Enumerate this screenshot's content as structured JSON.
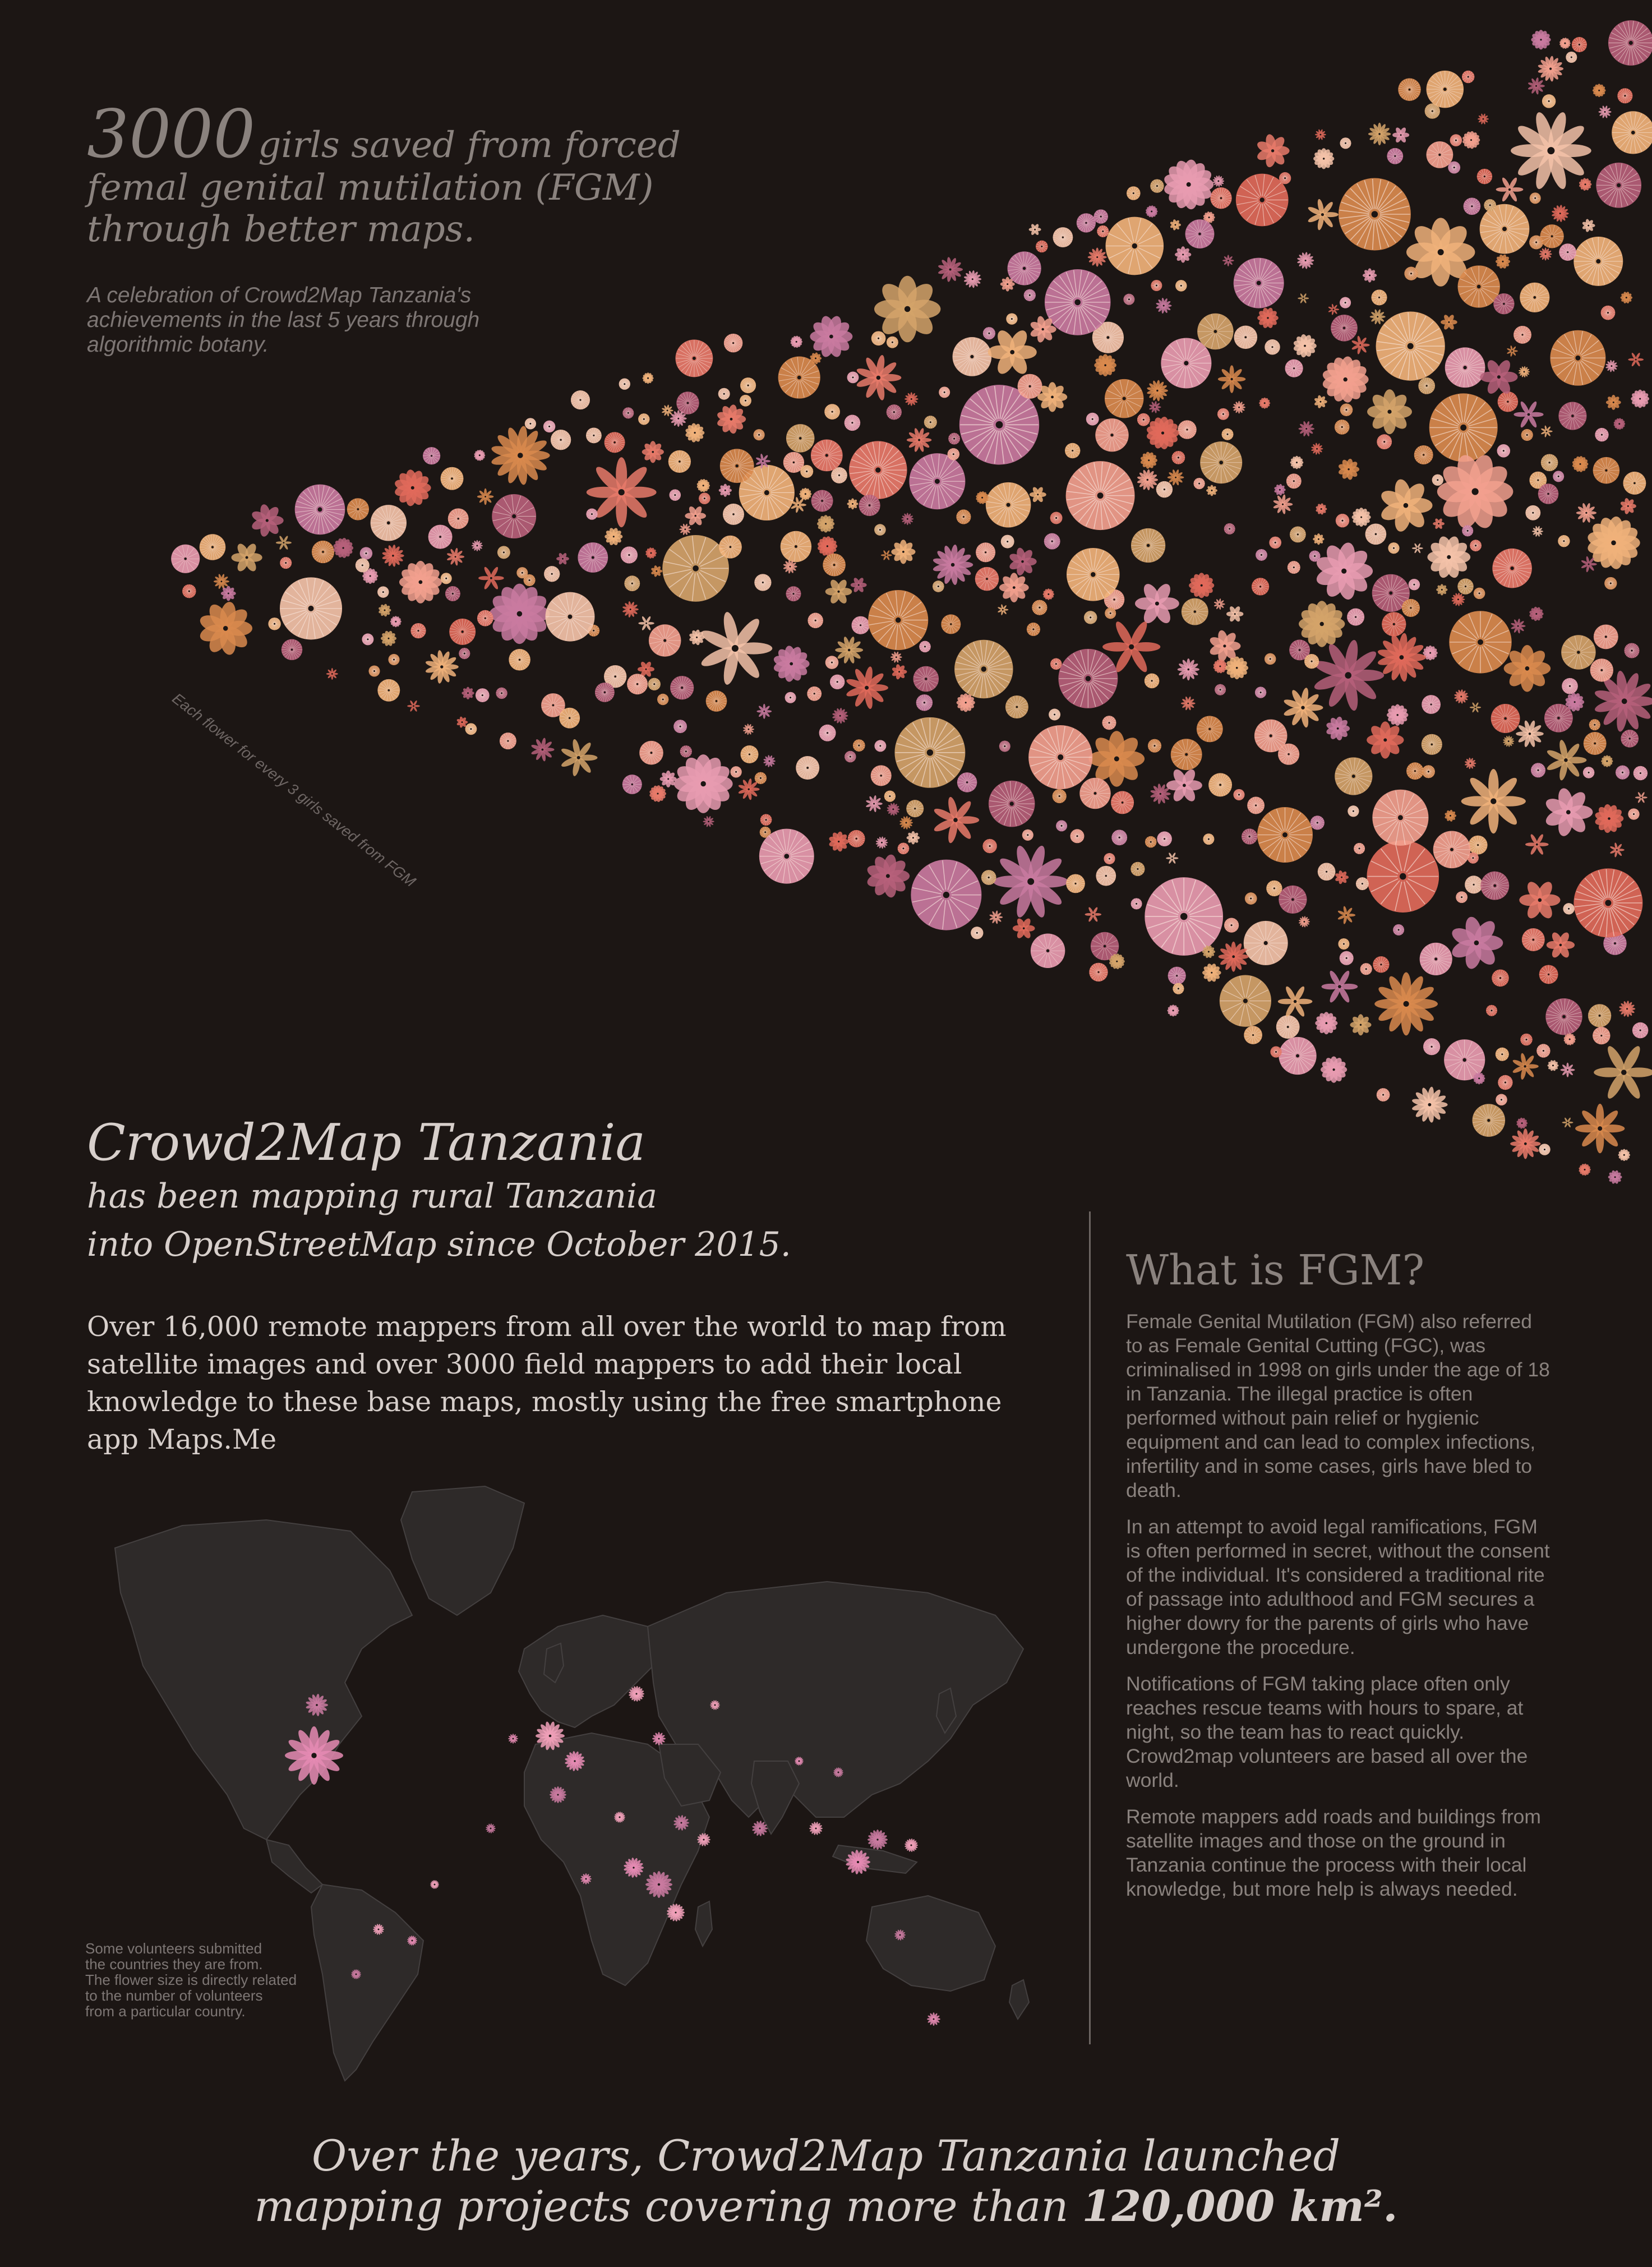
{
  "hero": {
    "number": "3000",
    "line1_rest": "girls saved from forced",
    "line2": "femal genital mutilation (FGM)",
    "line3": "through better maps.",
    "subtitle_lines": [
      "A celebration of Crowd2Map Tanzania's",
      "achievements in the last 5 years through",
      "algorithmic botany."
    ]
  },
  "flower_note": "Each flower for every 3 girls saved from FGM",
  "flower_palette": [
    "#f2a08e",
    "#e87a6a",
    "#f0b27a",
    "#d98a4e",
    "#e89bb0",
    "#c97aa0",
    "#f3c2a8",
    "#b6607a",
    "#e06a5a",
    "#d4a36a"
  ],
  "crowd2map": {
    "title": "Crowd2Map Tanzania",
    "sub_lines": [
      "has been mapping rural Tanzania",
      "into OpenStreetMap since October 2015."
    ],
    "body_lines": [
      "Over 16,000 remote mappers from all over the world to map from",
      "satellite images and over 3000 field mappers to add their local",
      "knowledge to these base maps, mostly using the free smartphone",
      "app Maps.Me"
    ]
  },
  "fgm": {
    "title": "What is FGM?",
    "paragraphs": [
      "Female Genital Mutilation (FGM) also referred to as Female Genital Cutting (FGC), was criminalised in 1998 on girls under the age of 18 in Tanzania. The illegal practice is often performed without pain relief or hygienic equipment and can lead to complex infections, infertility and in some cases, girls have bled to death.",
      "In an attempt to avoid legal ramifications, FGM is often performed in secret, without the consent of the individual. It's considered a traditional rite of passage into adulthood and FGM secures a higher dowry for the parents of girls who have undergone the procedure.",
      "Notifications of FGM taking place often only reaches rescue teams with hours to spare, at night, so the team has to react quickly. Crowd2map volunteers are based all over the world.",
      "Remote mappers add roads and buildings from satellite images and those on the ground in Tanzania continue the process with their local knowledge, but more help is always needed."
    ]
  },
  "map_note_lines": [
    "Some volunteers submitted",
    "the countries they are from.",
    "The flower size is directly related",
    "to the number of volunteers",
    "from a particular country."
  ],
  "footer": {
    "line1": "Over the years, Crowd2Map Tanzania launched",
    "line2_prefix": "mapping projects covering more than ",
    "line2_bold": "120,000 km².",
    "line2_suffix": ""
  },
  "colors": {
    "background": "#1c1614",
    "land": "#2e2a29",
    "border": "#444040",
    "flower_pink": "#e58bb3"
  },
  "icons": [
    "flower-icon",
    "world-map"
  ]
}
